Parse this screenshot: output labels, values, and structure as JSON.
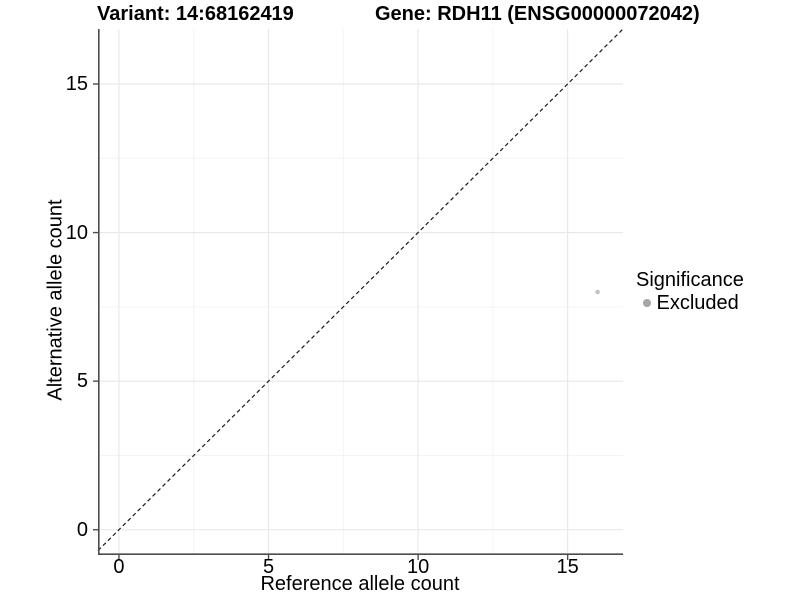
{
  "chart_data": {
    "type": "scatter",
    "title_left": "Variant: 14:68162419",
    "title_right": "Gene: RDH11 (ENSG00000072042)",
    "xlabel": "Reference allele count",
    "ylabel": "Alternative allele count",
    "xlim": [
      -0.7,
      16.85
    ],
    "ylim": [
      -0.85,
      16.85
    ],
    "x_ticks": [
      0,
      5,
      10,
      15
    ],
    "y_ticks": [
      0,
      5,
      10,
      15
    ],
    "x_minor_ticks": [
      2.5,
      7.5,
      12.5
    ],
    "y_minor_ticks": [
      2.5,
      7.5,
      12.5
    ],
    "grid": "white background, light gray major and minor gridlines",
    "series": [
      {
        "name": "Excluded",
        "color": "#c2c2c2",
        "point_radius": 2.3,
        "points": [
          {
            "x": 16,
            "y": 8
          }
        ]
      }
    ],
    "reference_line": {
      "label": "identity line y = x",
      "slope": 1,
      "intercept": 0,
      "style": "dashed",
      "color": "#1a1a1a"
    },
    "legend": {
      "title": "Significance",
      "position": "right",
      "entries": [
        {
          "label": "Excluded",
          "color": "#a6a6a6",
          "marker": "circle"
        }
      ]
    },
    "colors": {
      "major_grid": "#e7e7e7",
      "minor_grid": "#f4f4f4",
      "axis_line": "#4d4d4d",
      "tick_mark": "#4d4d4d",
      "background": "#ffffff"
    }
  }
}
